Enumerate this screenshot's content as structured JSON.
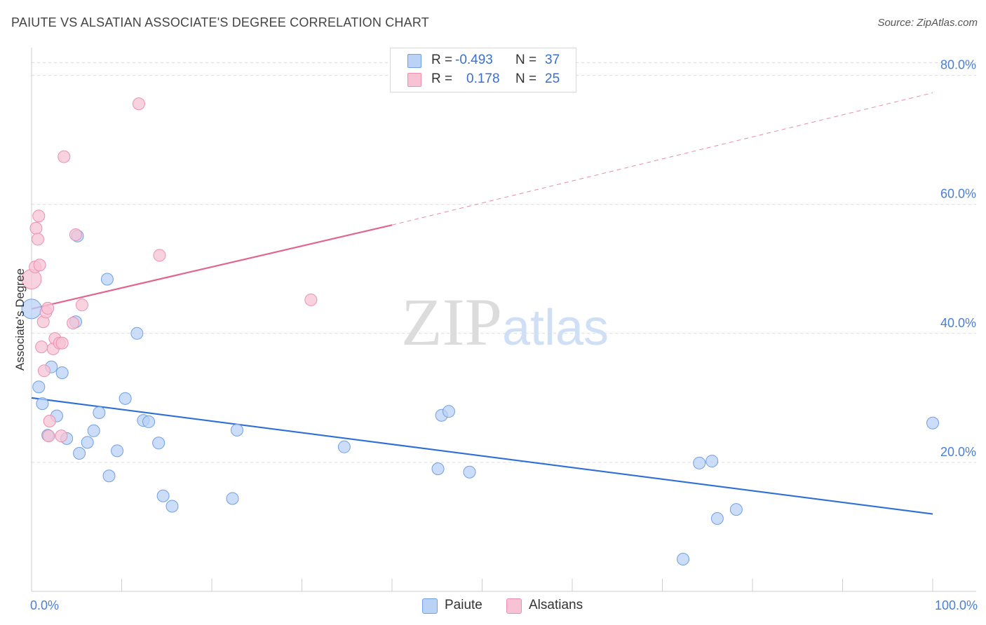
{
  "chart_data": {
    "type": "scatter",
    "title": "PAIUTE VS ALSATIAN ASSOCIATE'S DEGREE CORRELATION CHART",
    "source": "Source: ZipAtlas.com",
    "xlabel": "",
    "ylabel": "Associate's Degree",
    "xlim": [
      0,
      100
    ],
    "ylim": [
      0,
      83
    ],
    "x_tick_labels": [
      {
        "value": 0,
        "label": "0.0%"
      },
      {
        "value": 100,
        "label": "100.0%"
      }
    ],
    "y_tick_labels": [
      {
        "value": 20,
        "label": "20.0%"
      },
      {
        "value": 40,
        "label": "40.0%"
      },
      {
        "value": 60,
        "label": "60.0%"
      },
      {
        "value": 80,
        "label": "80.0%"
      }
    ],
    "grid": true,
    "legend_position": "top-center",
    "watermark": "ZIPatlas",
    "colors": {
      "paiute": "#6fa0e8",
      "paiute_fill": "#b9d2f5",
      "paiute_line": "#2e6fd6",
      "alsatians": "#ef8fb0",
      "alsatians_fill": "#f7c3d4",
      "alsatians_line": "#e0668f",
      "tick": "#4a7fd4"
    },
    "stats": [
      {
        "series": "Paiute",
        "r_label": "R =",
        "r": "-0.493",
        "n_label": "N =",
        "n": "37"
      },
      {
        "series": "Alsatians",
        "r_label": "R =",
        "r": "0.178",
        "n_label": "N =",
        "n": "25"
      }
    ],
    "series": [
      {
        "name": "Paiute",
        "points": [
          [
            0.0,
            43.8
          ],
          [
            0.8,
            31.7
          ],
          [
            1.2,
            29.1
          ],
          [
            1.8,
            24.2
          ],
          [
            2.2,
            34.8
          ],
          [
            2.8,
            27.2
          ],
          [
            3.4,
            33.9
          ],
          [
            3.9,
            23.7
          ],
          [
            4.9,
            41.8
          ],
          [
            5.1,
            55.1
          ],
          [
            5.3,
            21.4
          ],
          [
            6.2,
            23.1
          ],
          [
            6.9,
            24.9
          ],
          [
            7.5,
            27.7
          ],
          [
            8.4,
            48.4
          ],
          [
            8.6,
            17.9
          ],
          [
            9.5,
            21.8
          ],
          [
            10.4,
            29.9
          ],
          [
            11.7,
            40.0
          ],
          [
            12.4,
            26.5
          ],
          [
            13.0,
            26.3
          ],
          [
            14.1,
            23.0
          ],
          [
            14.6,
            14.8
          ],
          [
            15.6,
            13.2
          ],
          [
            22.3,
            14.4
          ],
          [
            22.8,
            25.0
          ],
          [
            34.7,
            22.4
          ],
          [
            45.1,
            19.0
          ],
          [
            45.5,
            27.3
          ],
          [
            46.3,
            27.9
          ],
          [
            48.6,
            18.5
          ],
          [
            72.3,
            5.0
          ],
          [
            74.1,
            19.9
          ],
          [
            75.5,
            20.2
          ],
          [
            76.1,
            11.3
          ],
          [
            78.2,
            12.7
          ],
          [
            100.0,
            26.1
          ]
        ],
        "trend": {
          "x0": 0,
          "y0": 30.0,
          "x1": 100,
          "y1": 12.0
        }
      },
      {
        "name": "Alsatians",
        "points": [
          [
            0.0,
            48.4
          ],
          [
            0.4,
            50.3
          ],
          [
            0.5,
            56.3
          ],
          [
            0.7,
            54.6
          ],
          [
            0.8,
            58.2
          ],
          [
            0.9,
            50.6
          ],
          [
            1.1,
            37.9
          ],
          [
            1.3,
            41.8
          ],
          [
            1.4,
            34.2
          ],
          [
            1.6,
            43.3
          ],
          [
            1.8,
            43.9
          ],
          [
            1.9,
            24.1
          ],
          [
            2.0,
            26.4
          ],
          [
            2.4,
            37.6
          ],
          [
            2.6,
            39.2
          ],
          [
            3.1,
            38.5
          ],
          [
            3.3,
            24.1
          ],
          [
            3.4,
            38.5
          ],
          [
            3.6,
            67.4
          ],
          [
            4.6,
            41.6
          ],
          [
            4.9,
            55.3
          ],
          [
            5.6,
            44.4
          ],
          [
            11.9,
            75.6
          ],
          [
            14.2,
            52.1
          ],
          [
            31.0,
            45.2
          ]
        ],
        "trend": {
          "x0": 0,
          "y0": 43.8,
          "x1": 40,
          "y1": 56.8
        },
        "trend_extension": {
          "x0": 40,
          "y0": 56.8,
          "x1": 100,
          "y1": 77.3
        }
      }
    ]
  }
}
